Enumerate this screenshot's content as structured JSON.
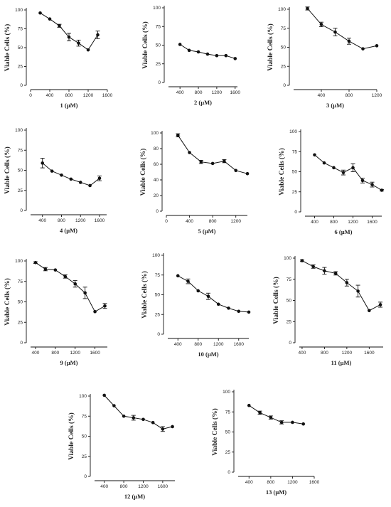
{
  "chart_data": [
    {
      "type": "line",
      "xlabel": "1 (µM)",
      "ylabel": "Viable Cells (%)",
      "xticks": [
        0,
        400,
        800,
        1200,
        1600
      ],
      "xlim": [
        0,
        1600
      ],
      "yticks": [
        0,
        25,
        50,
        75,
        100
      ],
      "ylim": [
        0,
        100
      ],
      "series": [
        {
          "x": [
            200,
            400,
            600,
            800,
            1000,
            1200,
            1400
          ],
          "y": [
            96,
            88,
            79,
            64,
            56,
            47,
            67
          ],
          "err": [
            0,
            0,
            2,
            5,
            4,
            0,
            5
          ]
        }
      ]
    },
    {
      "type": "line",
      "xlabel": "2 (µM)",
      "ylabel": "Viable Cells (%)",
      "xticks": [
        400,
        800,
        1200,
        1600
      ],
      "xlim": [
        150,
        1650
      ],
      "yticks": [
        0,
        25,
        50,
        75,
        100
      ],
      "ylim": [
        0,
        100
      ],
      "series": [
        {
          "x": [
            400,
            600,
            800,
            1000,
            1200,
            1400,
            1600
          ],
          "y": [
            51,
            43,
            41,
            38,
            36,
            36,
            32
          ],
          "err": [
            0,
            0,
            0,
            0,
            0,
            0,
            0
          ]
        }
      ]
    },
    {
      "type": "line",
      "xlabel": "3 (µM)",
      "ylabel": "Viable Cells (%)",
      "xticks": [
        400,
        800,
        1200
      ],
      "xlim": [
        0,
        1200
      ],
      "yticks": [
        0,
        25,
        50,
        75,
        100
      ],
      "ylim": [
        0,
        100
      ],
      "series": [
        {
          "x": [
            200,
            400,
            600,
            800,
            1000,
            1200
          ],
          "y": [
            101,
            80,
            70,
            58,
            48,
            52
          ],
          "err": [
            2,
            3,
            5,
            4,
            0,
            0
          ]
        }
      ]
    },
    {
      "type": "line",
      "xlabel": "4 (µM)",
      "ylabel": "Viable Cells (%)",
      "xticks": [
        400,
        800,
        1200,
        1600
      ],
      "xlim": [
        150,
        1750
      ],
      "yticks": [
        0,
        25,
        50,
        75,
        100
      ],
      "ylim": [
        0,
        100
      ],
      "series": [
        {
          "x": [
            400,
            600,
            800,
            1000,
            1200,
            1400,
            1600
          ],
          "y": [
            59,
            49,
            44,
            39,
            35,
            31,
            40
          ],
          "err": [
            6,
            0,
            0,
            0,
            0,
            0,
            3
          ]
        }
      ]
    },
    {
      "type": "line",
      "xlabel": "5 (µM)",
      "ylabel": "Viable Cells (%)",
      "xticks": [
        0,
        400,
        800,
        1200
      ],
      "xlim": [
        0,
        1400
      ],
      "yticks": [
        0,
        20,
        40,
        60,
        80,
        100
      ],
      "ylim": [
        0,
        100
      ],
      "series": [
        {
          "x": [
            200,
            400,
            600,
            800,
            1000,
            1200,
            1400
          ],
          "y": [
            97,
            75,
            63,
            61,
            64,
            52,
            48
          ],
          "err": [
            2,
            0,
            2,
            0,
            2,
            0,
            0
          ]
        }
      ]
    },
    {
      "type": "line",
      "xlabel": "6 (µM)",
      "ylabel": "Viable Cells (%)",
      "xticks": [
        400,
        800,
        1200,
        1600
      ],
      "xlim": [
        200,
        1800
      ],
      "yticks": [
        0,
        25,
        50,
        75,
        100
      ],
      "ylim": [
        0,
        100
      ],
      "series": [
        {
          "x": [
            400,
            600,
            800,
            1000,
            1200,
            1400,
            1600,
            1800
          ],
          "y": [
            71,
            61,
            55,
            49,
            55,
            39,
            34,
            27
          ],
          "err": [
            0,
            0,
            0,
            3,
            5,
            3,
            3,
            1
          ]
        }
      ]
    },
    {
      "type": "line",
      "xlabel": "9 (µM)",
      "ylabel": "Viable Cells (%)",
      "xticks": [
        400,
        800,
        1200,
        1600
      ],
      "xlim": [
        300,
        1850
      ],
      "yticks": [
        0,
        25,
        50,
        75,
        100
      ],
      "ylim": [
        0,
        100
      ],
      "series": [
        {
          "x": [
            400,
            600,
            800,
            1000,
            1200,
            1400,
            1600,
            1800
          ],
          "y": [
            98,
            90,
            89,
            81,
            72,
            61,
            38,
            45
          ],
          "err": [
            1,
            2,
            0,
            2,
            4,
            7,
            0,
            3
          ]
        }
      ]
    },
    {
      "type": "line",
      "xlabel": "10 (µM)",
      "ylabel": "Viable Cells (%)",
      "xticks": [
        400,
        800,
        1200,
        1600
      ],
      "xlim": [
        200,
        1800
      ],
      "yticks": [
        0,
        25,
        50,
        75,
        100
      ],
      "ylim": [
        0,
        100
      ],
      "series": [
        {
          "x": [
            400,
            600,
            800,
            1000,
            1200,
            1400,
            1600,
            1800
          ],
          "y": [
            74,
            67,
            55,
            48,
            38,
            33,
            29,
            28
          ],
          "err": [
            0,
            3,
            0,
            4,
            0,
            0,
            0,
            0
          ]
        }
      ]
    },
    {
      "type": "line",
      "xlabel": "11 (µM)",
      "ylabel": "Viable Cells (%)",
      "xticks": [
        400,
        800,
        1200,
        1600
      ],
      "xlim": [
        350,
        1850
      ],
      "yticks": [
        0,
        25,
        50,
        75,
        100
      ],
      "ylim": [
        0,
        100
      ],
      "series": [
        {
          "x": [
            400,
            600,
            800,
            1000,
            1200,
            1400,
            1600,
            1800
          ],
          "y": [
            97,
            90,
            85,
            82,
            71,
            61,
            38,
            45
          ],
          "err": [
            1,
            2,
            4,
            2,
            4,
            7,
            0,
            3
          ]
        }
      ]
    },
    {
      "type": "line",
      "xlabel": "12 (µM)",
      "ylabel": "Viable Cells (%)",
      "xticks": [
        400,
        800,
        1200,
        1600
      ],
      "xlim": [
        200,
        1850
      ],
      "yticks": [
        0,
        25,
        50,
        75,
        100
      ],
      "ylim": [
        0,
        100
      ],
      "series": [
        {
          "x": [
            400,
            600,
            800,
            1000,
            1200,
            1400,
            1600,
            1800
          ],
          "y": [
            101,
            88,
            75,
            73,
            71,
            67,
            59,
            62
          ],
          "err": [
            0,
            0,
            0,
            3,
            0,
            0,
            3,
            0
          ]
        }
      ]
    },
    {
      "type": "line",
      "xlabel": "13 (µM)",
      "ylabel": "Viable Cells (%)",
      "xticks": [
        400,
        800,
        1200,
        1600
      ],
      "xlim": [
        200,
        1600
      ],
      "yticks": [
        0,
        25,
        50,
        75,
        100
      ],
      "ylim": [
        0,
        100
      ],
      "series": [
        {
          "x": [
            400,
            600,
            800,
            1000,
            1200,
            1400
          ],
          "y": [
            83,
            74,
            68,
            62,
            62,
            60
          ],
          "err": [
            0,
            2,
            2,
            2,
            0,
            0
          ]
        }
      ]
    }
  ]
}
